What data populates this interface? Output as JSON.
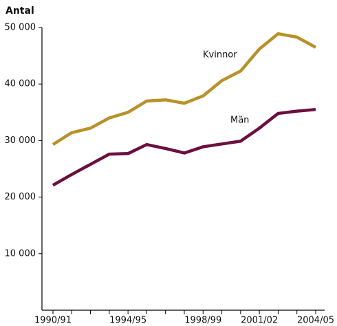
{
  "chart_data": {
    "type": "line",
    "y_label": "Antal",
    "categories": [
      "1990/91",
      null,
      null,
      null,
      "1994/95",
      null,
      null,
      null,
      "1998/99",
      null,
      null,
      "2001/02",
      null,
      null,
      "2004/05"
    ],
    "series": [
      {
        "name": "Kvinnor",
        "color": "#b8912a",
        "values": [
          29300,
          31400,
          32200,
          34000,
          35000,
          37000,
          37200,
          36600,
          37900,
          40600,
          42300,
          46200,
          48900,
          48300,
          46500
        ]
      },
      {
        "name": "Män",
        "color": "#6b0f3f",
        "values": [
          22100,
          24000,
          25800,
          27600,
          27700,
          29300,
          28600,
          27800,
          28900,
          29400,
          29900,
          32200,
          34800,
          35200,
          35500
        ]
      }
    ],
    "ylim": [
      0,
      50000
    ],
    "yticks": [
      {
        "value": 10000,
        "label": "10 000"
      },
      {
        "value": 20000,
        "label": "20 000"
      },
      {
        "value": 30000,
        "label": "30 000"
      },
      {
        "value": 40000,
        "label": "40 000"
      },
      {
        "value": 50000,
        "label": "50 000"
      }
    ]
  }
}
